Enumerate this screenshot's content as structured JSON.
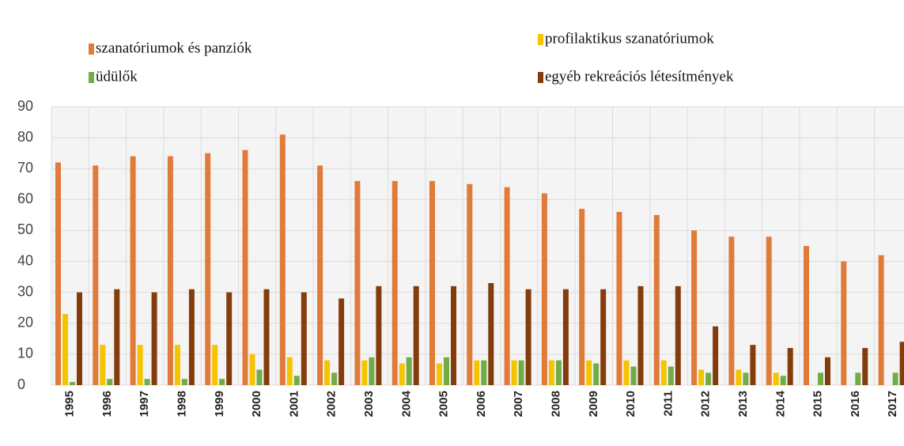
{
  "chart_data": {
    "type": "bar",
    "categories": [
      "1995",
      "1996",
      "1997",
      "1998",
      "1999",
      "2000",
      "2001",
      "2002",
      "2003",
      "2004",
      "2005",
      "2006",
      "2007",
      "2008",
      "2009",
      "2010",
      "2011",
      "2012",
      "2013",
      "2014",
      "2015",
      "2016",
      "2017"
    ],
    "series": [
      {
        "name": "szanatóriumok és panziók",
        "color": "#e07b39",
        "values": [
          72,
          71,
          74,
          74,
          75,
          76,
          81,
          71,
          66,
          66,
          66,
          65,
          64,
          62,
          57,
          56,
          55,
          50,
          48,
          48,
          45,
          40,
          42
        ]
      },
      {
        "name": "profilaktikus szanatóriumok",
        "color": "#f5c400",
        "values": [
          23,
          13,
          13,
          13,
          13,
          10,
          9,
          8,
          8,
          7,
          7,
          8,
          8,
          8,
          8,
          8,
          8,
          5,
          5,
          4,
          null,
          null,
          null
        ]
      },
      {
        "name": "üdülők",
        "color": "#70ad47",
        "values": [
          1,
          2,
          2,
          2,
          2,
          5,
          3,
          4,
          9,
          9,
          9,
          8,
          8,
          8,
          7,
          6,
          6,
          4,
          4,
          3,
          4,
          4,
          4
        ]
      },
      {
        "name": "egyéb rekreációs létesítmények",
        "color": "#843c0c",
        "values": [
          30,
          31,
          30,
          31,
          30,
          31,
          30,
          28,
          32,
          32,
          32,
          33,
          31,
          31,
          31,
          32,
          32,
          19,
          13,
          12,
          9,
          12,
          14
        ]
      }
    ],
    "ylim": [
      0,
      90
    ],
    "yticks": [
      0,
      10,
      20,
      30,
      40,
      50,
      60,
      70,
      80,
      90
    ],
    "grid": true,
    "legend": "top"
  }
}
